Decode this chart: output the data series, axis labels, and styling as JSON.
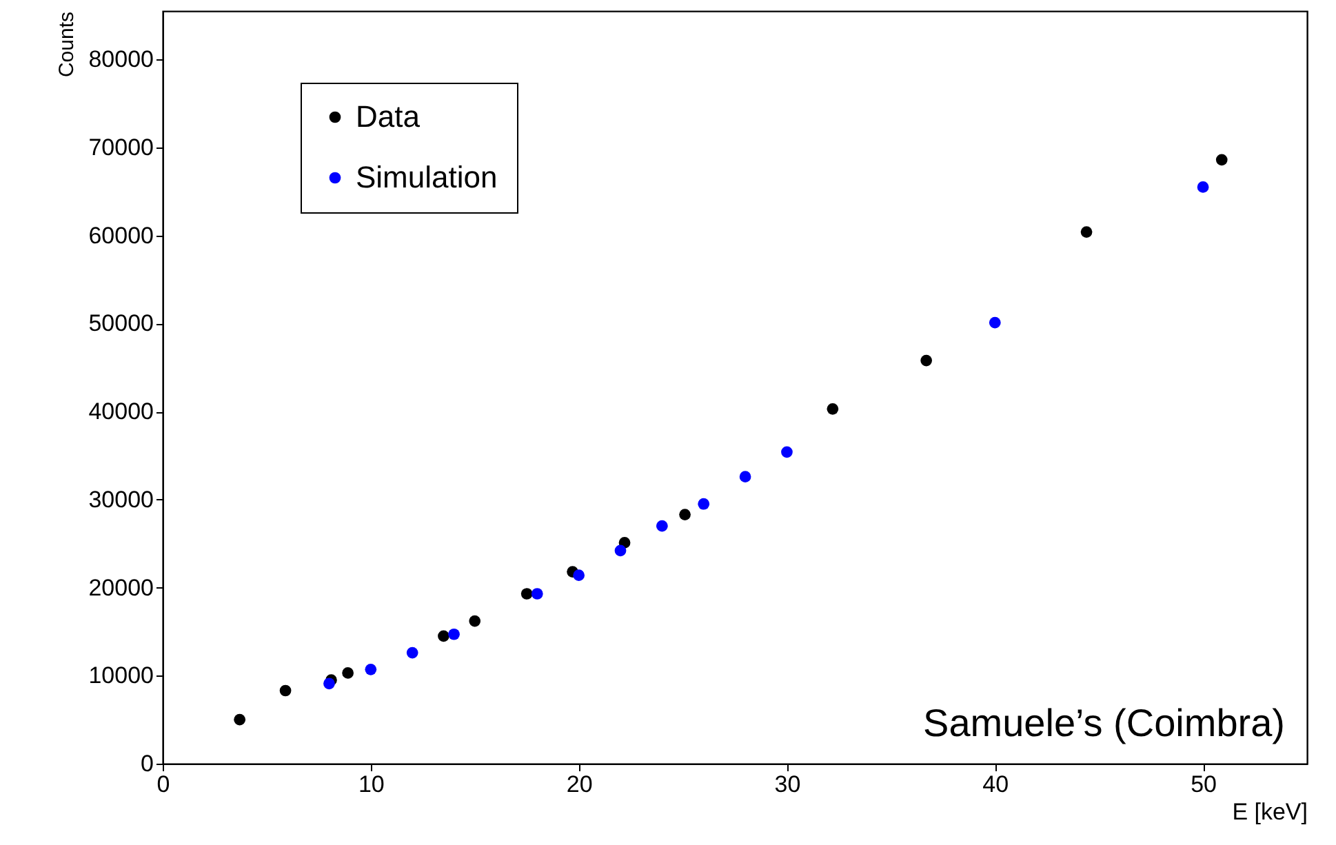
{
  "chart_data": {
    "type": "scatter",
    "xlabel": "E [keV]",
    "ylabel": "Counts",
    "xlim": [
      0,
      55
    ],
    "xticks": [
      0,
      10,
      20,
      30,
      40,
      50
    ],
    "ylim": [
      0,
      85500
    ],
    "yticks": [
      0,
      10000,
      20000,
      30000,
      40000,
      50000,
      60000,
      70000,
      80000
    ],
    "grid": false,
    "legend": "top left",
    "marker": "circle",
    "annotations": [
      "Samuele’s (Coimbra)"
    ],
    "series": [
      {
        "name": "Data",
        "color": "#000000",
        "x": [
          3.7,
          5.9,
          8.1,
          8.9,
          13.5,
          15.0,
          17.5,
          19.7,
          22.2,
          25.1,
          32.2,
          36.7,
          44.4,
          50.9
        ],
        "values": [
          5000,
          8300,
          9500,
          10300,
          14500,
          16200,
          19300,
          21800,
          25100,
          28300,
          40300,
          45800,
          60400,
          68600
        ]
      },
      {
        "name": "Simulation",
        "color": "#0000ff",
        "x": [
          8,
          10,
          12,
          14,
          18,
          20,
          22,
          24,
          26,
          28,
          30,
          40,
          50
        ],
        "values": [
          9100,
          10700,
          12600,
          14700,
          19300,
          21400,
          24200,
          27000,
          29500,
          32600,
          35400,
          50100,
          65500
        ]
      }
    ]
  }
}
